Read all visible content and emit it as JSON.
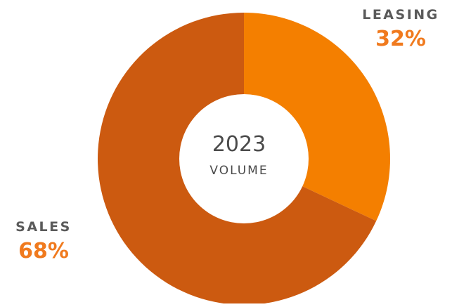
{
  "chart_data": {
    "type": "pie",
    "variant": "donut",
    "center_text": {
      "year": "2023",
      "label": "VOLUME"
    },
    "slices": [
      {
        "name": "LEASING",
        "value": 32,
        "display": "32%",
        "color": "#f47f00"
      },
      {
        "name": "SALES",
        "value": 68,
        "display": "68%",
        "color": "#cc5a10"
      }
    ],
    "label_color": "#5a5a5a",
    "percent_color": "#f07a1e"
  }
}
